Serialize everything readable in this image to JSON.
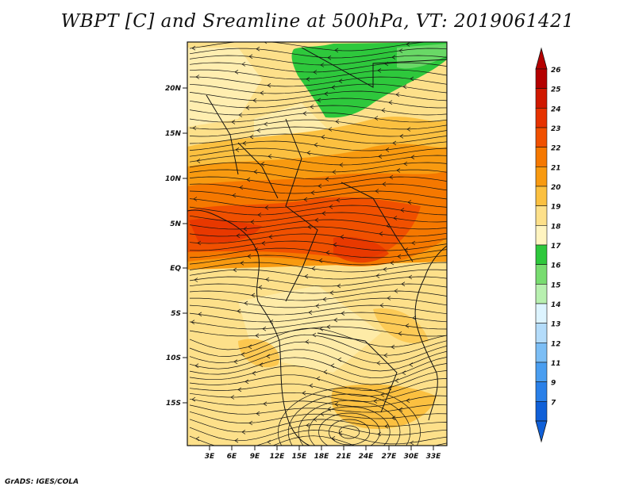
{
  "title": "WBPT [C] and Sreamline at 500hPa, VT: 2019061421",
  "footer": "GrADS: IGES/COLA",
  "map": {
    "lat_labels": [
      "20N",
      "15N",
      "10N",
      "5N",
      "EQ",
      "5S",
      "10S",
      "15S"
    ],
    "lon_labels": [
      "3E",
      "6E",
      "9E",
      "12E",
      "15E",
      "18E",
      "21E",
      "24E",
      "27E",
      "30E",
      "33E"
    ]
  },
  "colorbar": {
    "levels": [
      "26",
      "25",
      "24",
      "23",
      "22",
      "21",
      "20",
      "19",
      "18",
      "17",
      "16",
      "15",
      "14",
      "13",
      "12",
      "11",
      "9",
      "7"
    ],
    "colors": [
      "#b40000",
      "#d01800",
      "#e63200",
      "#f05000",
      "#f57800",
      "#f89a10",
      "#fbc040",
      "#fde08a",
      "#fff4c0",
      "#2ec83c",
      "#78dc70",
      "#b8f0b0",
      "#ddf4ff",
      "#b4dcfa",
      "#7cbef5",
      "#4a9ef0",
      "#2a80e8",
      "#1060d8"
    ]
  }
}
